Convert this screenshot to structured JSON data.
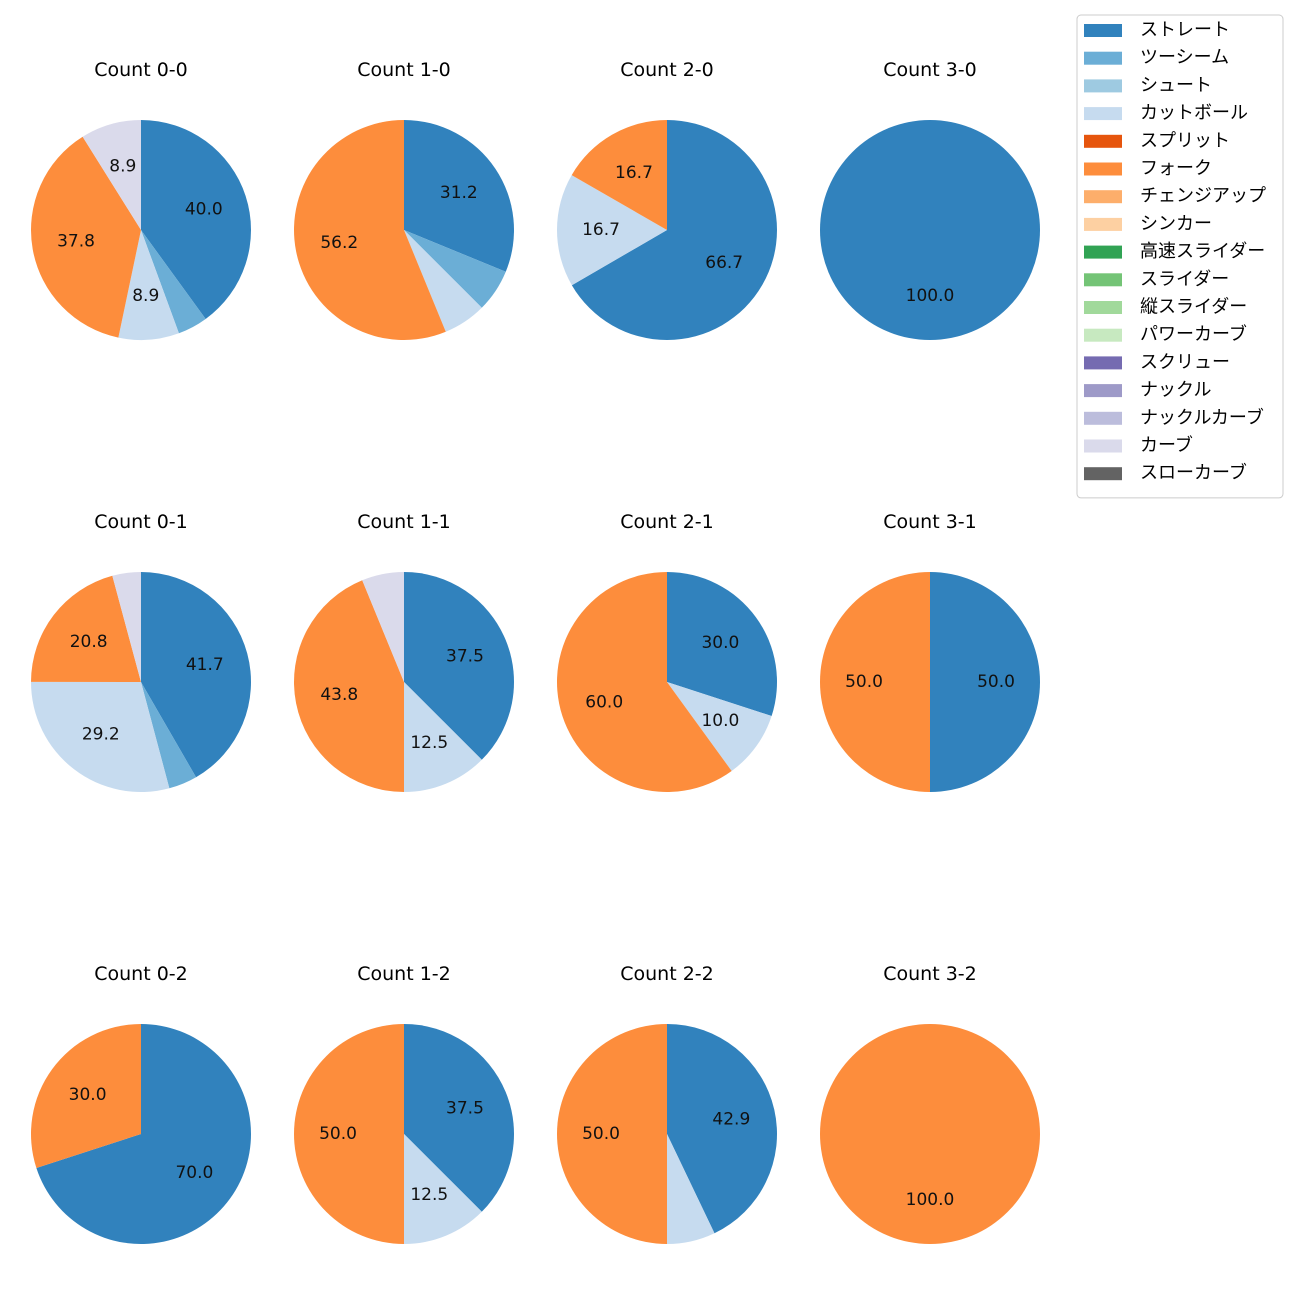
{
  "chart_data": {
    "type": "pie",
    "legend": {
      "placement": "top-right",
      "entries": [
        {
          "name": "ストレート",
          "color": "#3182bd"
        },
        {
          "name": "ツーシーム",
          "color": "#6baed6"
        },
        {
          "name": "シュート",
          "color": "#9ecae1"
        },
        {
          "name": "カットボール",
          "color": "#c6dbef"
        },
        {
          "name": "スプリット",
          "color": "#e6550d"
        },
        {
          "name": "フォーク",
          "color": "#fd8d3c"
        },
        {
          "name": "チェンジアップ",
          "color": "#fdae6b"
        },
        {
          "name": "シンカー",
          "color": "#fdd0a2"
        },
        {
          "name": "高速スライダー",
          "color": "#31a354"
        },
        {
          "name": "スライダー",
          "color": "#74c476"
        },
        {
          "name": "縦スライダー",
          "color": "#a1d99b"
        },
        {
          "name": "パワーカーブ",
          "color": "#c7e9c0"
        },
        {
          "name": "スクリュー",
          "color": "#756bb1"
        },
        {
          "name": "ナックル",
          "color": "#9e9ac8"
        },
        {
          "name": "ナックルカーブ",
          "color": "#bcbddc"
        },
        {
          "name": "カーブ",
          "color": "#dadaeb"
        },
        {
          "name": "スローカーブ",
          "color": "#636363"
        }
      ]
    },
    "pies": [
      {
        "title": "Count 0-0",
        "slices": [
          {
            "pitch": "ストレート",
            "value": 40.0,
            "label": "40.0"
          },
          {
            "pitch": "ツーシーム",
            "value": 4.4,
            "label": ""
          },
          {
            "pitch": "カットボール",
            "value": 8.9,
            "label": "8.9"
          },
          {
            "pitch": "フォーク",
            "value": 37.8,
            "label": "37.8"
          },
          {
            "pitch": "カーブ",
            "value": 8.9,
            "label": "8.9"
          }
        ]
      },
      {
        "title": "Count 1-0",
        "slices": [
          {
            "pitch": "ストレート",
            "value": 31.2,
            "label": "31.2"
          },
          {
            "pitch": "ツーシーム",
            "value": 6.3,
            "label": ""
          },
          {
            "pitch": "カットボール",
            "value": 6.3,
            "label": ""
          },
          {
            "pitch": "フォーク",
            "value": 56.2,
            "label": "56.2"
          }
        ]
      },
      {
        "title": "Count 2-0",
        "slices": [
          {
            "pitch": "ストレート",
            "value": 66.7,
            "label": "66.7"
          },
          {
            "pitch": "カットボール",
            "value": 16.7,
            "label": "16.7"
          },
          {
            "pitch": "フォーク",
            "value": 16.7,
            "label": "16.7"
          }
        ]
      },
      {
        "title": "Count 3-0",
        "slices": [
          {
            "pitch": "ストレート",
            "value": 100.0,
            "label": "100.0"
          }
        ]
      },
      {
        "title": "Count 0-1",
        "slices": [
          {
            "pitch": "ストレート",
            "value": 41.7,
            "label": "41.7"
          },
          {
            "pitch": "ツーシーム",
            "value": 4.2,
            "label": ""
          },
          {
            "pitch": "カットボール",
            "value": 29.2,
            "label": "29.2"
          },
          {
            "pitch": "フォーク",
            "value": 20.8,
            "label": "20.8"
          },
          {
            "pitch": "カーブ",
            "value": 4.2,
            "label": ""
          }
        ]
      },
      {
        "title": "Count 1-1",
        "slices": [
          {
            "pitch": "ストレート",
            "value": 37.5,
            "label": "37.5"
          },
          {
            "pitch": "カットボール",
            "value": 12.5,
            "label": "12.5"
          },
          {
            "pitch": "フォーク",
            "value": 43.8,
            "label": "43.8"
          },
          {
            "pitch": "カーブ",
            "value": 6.2,
            "label": ""
          }
        ]
      },
      {
        "title": "Count 2-1",
        "slices": [
          {
            "pitch": "ストレート",
            "value": 30.0,
            "label": "30.0"
          },
          {
            "pitch": "カットボール",
            "value": 10.0,
            "label": "10.0"
          },
          {
            "pitch": "フォーク",
            "value": 60.0,
            "label": "60.0"
          }
        ]
      },
      {
        "title": "Count 3-1",
        "slices": [
          {
            "pitch": "ストレート",
            "value": 50.0,
            "label": "50.0"
          },
          {
            "pitch": "フォーク",
            "value": 50.0,
            "label": "50.0"
          }
        ]
      },
      {
        "title": "Count 0-2",
        "slices": [
          {
            "pitch": "ストレート",
            "value": 70.0,
            "label": "70.0"
          },
          {
            "pitch": "フォーク",
            "value": 30.0,
            "label": "30.0"
          }
        ]
      },
      {
        "title": "Count 1-2",
        "slices": [
          {
            "pitch": "ストレート",
            "value": 37.5,
            "label": "37.5"
          },
          {
            "pitch": "カットボール",
            "value": 12.5,
            "label": "12.5"
          },
          {
            "pitch": "フォーク",
            "value": 50.0,
            "label": "50.0"
          }
        ]
      },
      {
        "title": "Count 2-2",
        "slices": [
          {
            "pitch": "ストレート",
            "value": 42.9,
            "label": "42.9"
          },
          {
            "pitch": "カットボール",
            "value": 7.1,
            "label": ""
          },
          {
            "pitch": "フォーク",
            "value": 50.0,
            "label": "50.0"
          }
        ]
      },
      {
        "title": "Count 3-2",
        "slices": [
          {
            "pitch": "フォーク",
            "value": 100.0,
            "label": "100.0"
          }
        ]
      }
    ]
  }
}
